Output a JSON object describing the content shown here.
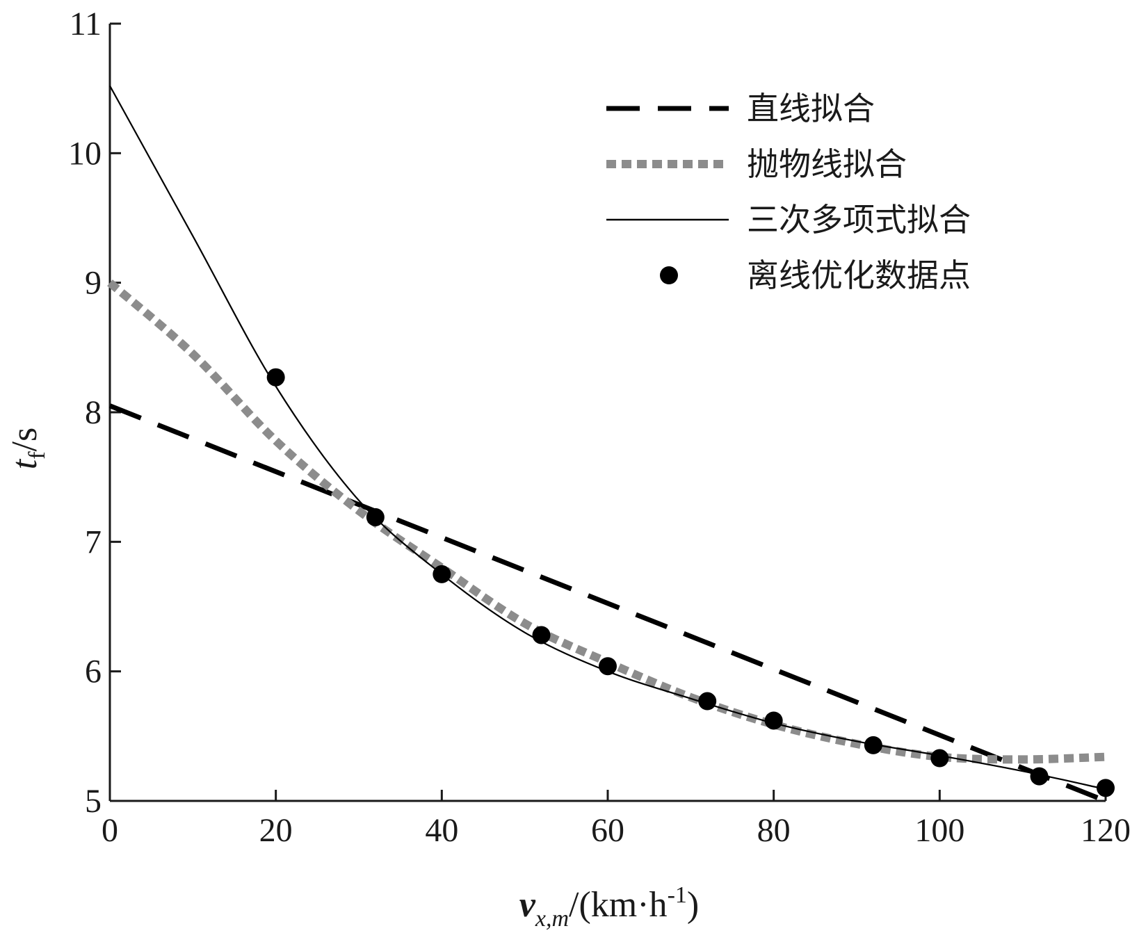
{
  "chart_data": {
    "type": "line",
    "xlabel": {
      "main": "v",
      "sub": "x,m",
      "unit": "/(km·h",
      "sup": "-1",
      "close": ")"
    },
    "ylabel": {
      "main": "t",
      "sub": "f",
      "unit": "/s"
    },
    "xlim": [
      0,
      120
    ],
    "ylim": [
      5,
      11
    ],
    "x_ticks": [
      0,
      20,
      40,
      60,
      80,
      100,
      120
    ],
    "y_ticks": [
      5,
      6,
      7,
      8,
      9,
      10,
      11
    ],
    "grid": false,
    "legend_position": "top-right",
    "legend": [
      {
        "label": "直线拟合",
        "style": "dashed",
        "color": "#000000"
      },
      {
        "label": "抛物线拟合",
        "style": "dotted",
        "color": "#8c8c8c"
      },
      {
        "label": "三次多项式拟合",
        "style": "solid",
        "color": "#000000"
      },
      {
        "label": "离线优化数据点",
        "style": "marker",
        "color": "#000000"
      }
    ],
    "series": [
      {
        "name": "直线拟合",
        "kind": "line",
        "x": [
          0,
          120
        ],
        "y": [
          8.05,
          5.0
        ]
      },
      {
        "name": "抛物线拟合",
        "kind": "line",
        "x": [
          0,
          10,
          20,
          30,
          40,
          50,
          60,
          70,
          80,
          90,
          100,
          110,
          120
        ],
        "y": [
          9.0,
          8.45,
          7.78,
          7.24,
          6.8,
          6.37,
          6.07,
          5.8,
          5.59,
          5.44,
          5.34,
          5.32,
          5.34
        ]
      },
      {
        "name": "三次多项式拟合",
        "kind": "line",
        "x": [
          0,
          10,
          20,
          30,
          40,
          50,
          60,
          70,
          80,
          90,
          100,
          110,
          120
        ],
        "y": [
          10.52,
          9.36,
          8.2,
          7.32,
          6.75,
          6.3,
          6.0,
          5.79,
          5.6,
          5.46,
          5.35,
          5.23,
          5.09
        ]
      },
      {
        "name": "离线优化数据点",
        "kind": "scatter",
        "x": [
          20,
          32,
          40,
          52,
          60,
          72,
          80,
          92,
          100,
          112,
          120
        ],
        "y": [
          8.27,
          7.19,
          6.75,
          6.28,
          6.04,
          5.77,
          5.62,
          5.43,
          5.33,
          5.19,
          5.1
        ]
      }
    ]
  }
}
